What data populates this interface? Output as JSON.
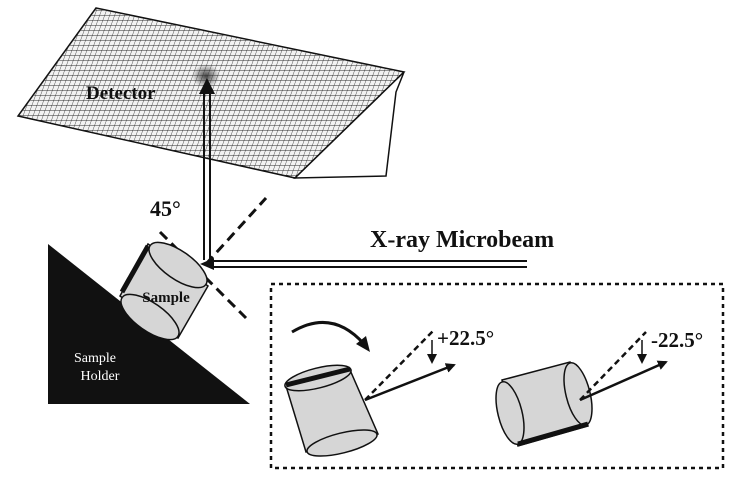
{
  "labels": {
    "detector": "Detector",
    "angle_45": "45°",
    "xray_microbeam": "X-ray Microbeam",
    "sample": "Sample",
    "sample_holder_line1": "Sample",
    "sample_holder_line2": "Holder",
    "tilt_positive": "+22.5°",
    "tilt_negative": "-22.5°"
  },
  "colors": {
    "ink": "#111111",
    "sample_fill": "#d6d6d6",
    "detector_fill": "#f2f2f2",
    "holder_fill": "#111111"
  }
}
